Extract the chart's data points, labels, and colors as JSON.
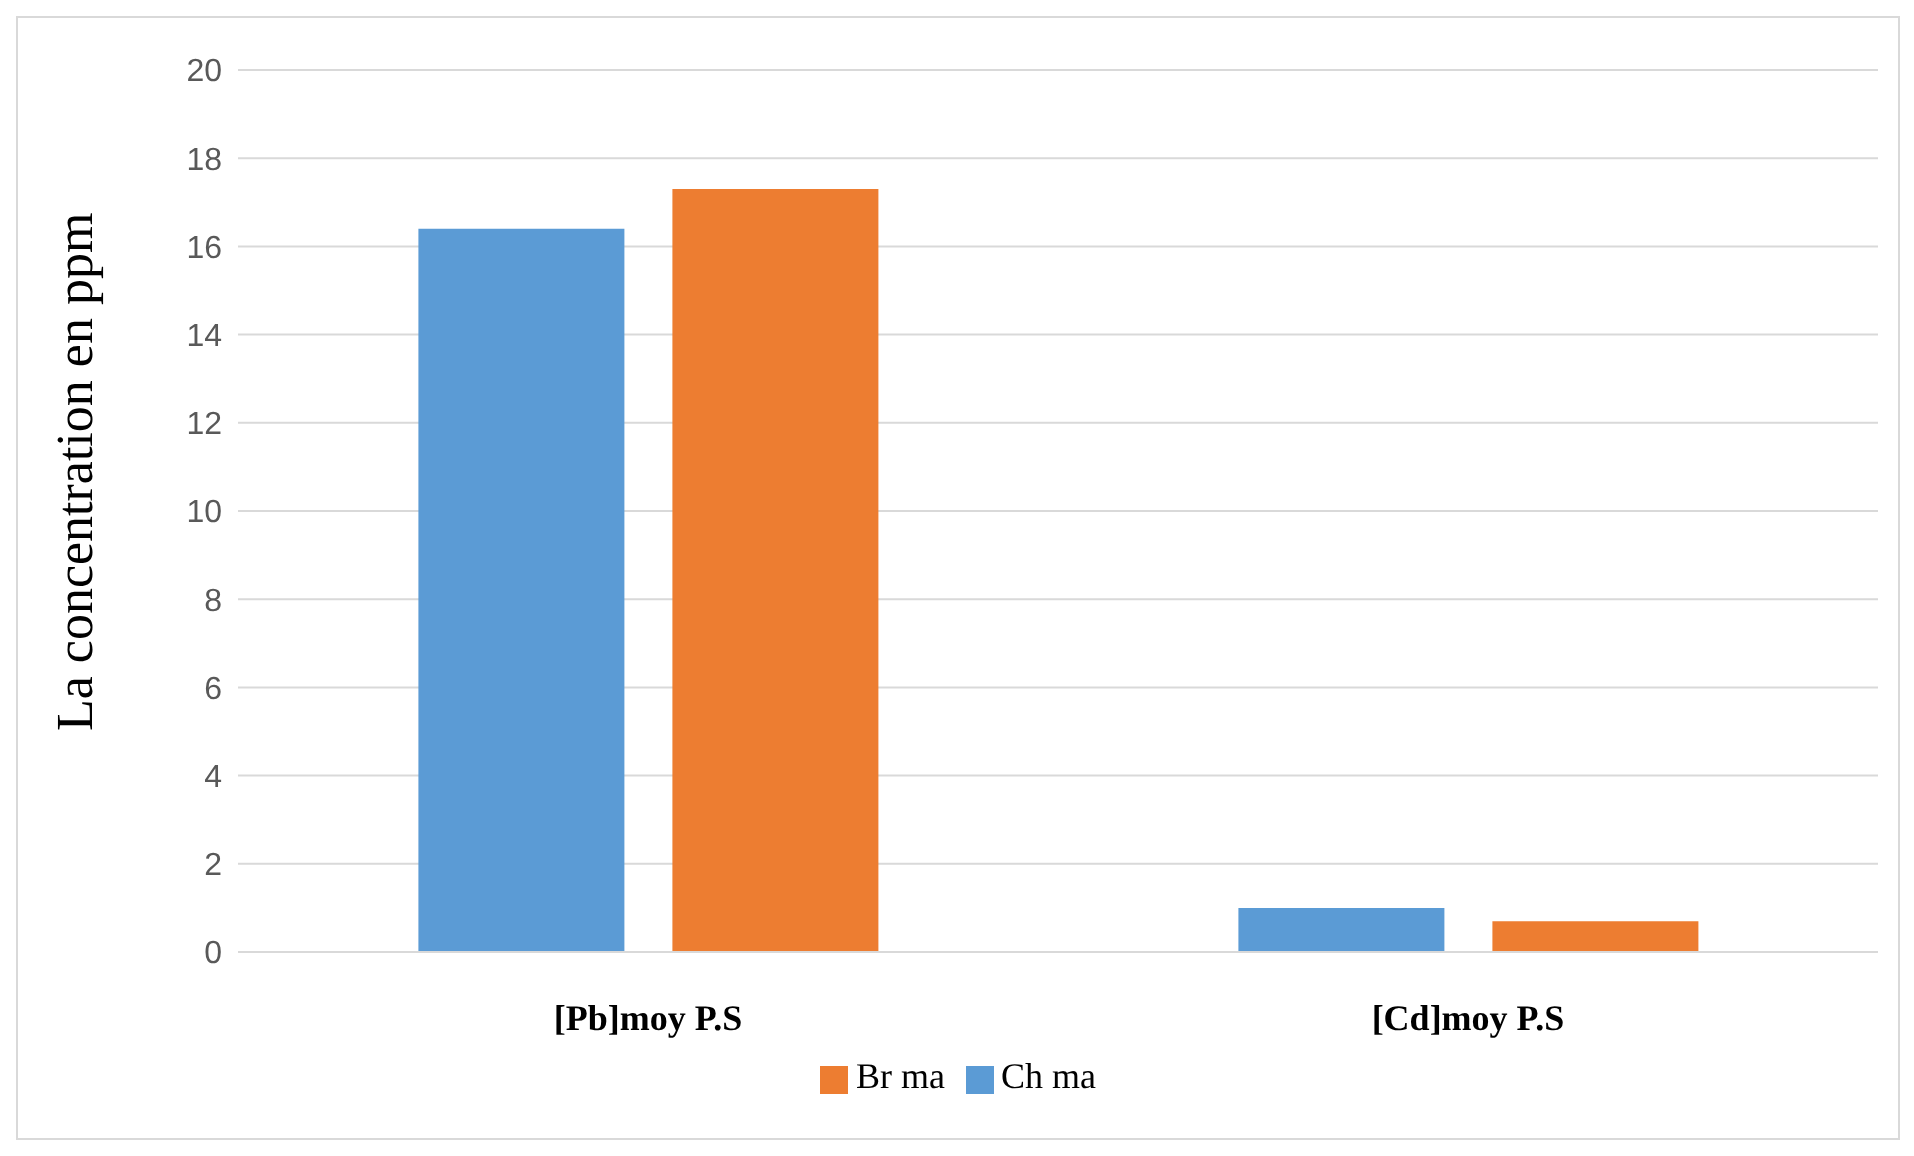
{
  "chart_data": {
    "type": "bar",
    "ylabel": "La concentration en ppm",
    "categories": [
      "[Pb]moy P.S",
      "[Cd]moy P.S"
    ],
    "series": [
      {
        "name": "Ch ma",
        "color": "#5b9bd5",
        "values": [
          16.4,
          1.0
        ]
      },
      {
        "name": "Br ma",
        "color": "#ed7d31",
        "values": [
          17.3,
          0.7
        ]
      }
    ],
    "ylim": [
      0,
      20
    ],
    "yticks": [
      0,
      2,
      4,
      6,
      8,
      10,
      12,
      14,
      16,
      18,
      20
    ],
    "grid": "y",
    "legend": "bottom"
  }
}
